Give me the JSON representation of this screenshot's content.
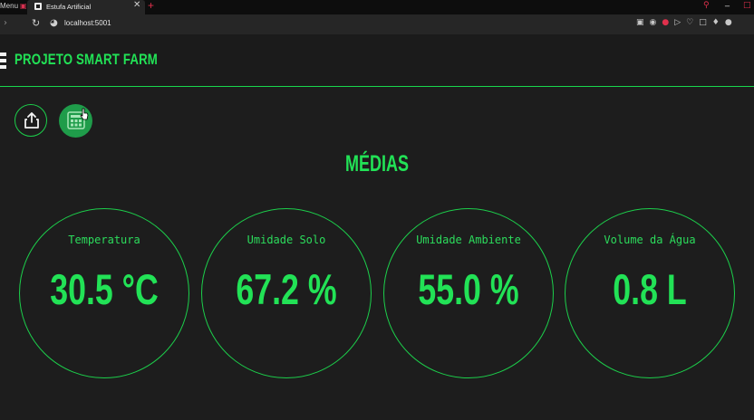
{
  "browser": {
    "tabs": [
      {
        "label": "Menu"
      },
      {
        "label": "Estufa Artificial",
        "close": "✕"
      }
    ],
    "new_tab": "+",
    "url": "localhost:5001"
  },
  "app": {
    "title": "PROJETO SMART FARM",
    "accent_color": "#22e256",
    "buttons": [
      {
        "icon": "share-icon"
      },
      {
        "icon": "calculator-icon"
      }
    ]
  },
  "main": {
    "section_title": "MÉDIAS",
    "gauges": [
      {
        "label": "Temperatura",
        "value": "30.5 °C"
      },
      {
        "label": "Umidade Solo",
        "value": "67.2 %"
      },
      {
        "label": "Umidade Ambiente",
        "value": "55.0 %"
      },
      {
        "label": "Volume da Água",
        "value": "0.8 L"
      }
    ]
  }
}
